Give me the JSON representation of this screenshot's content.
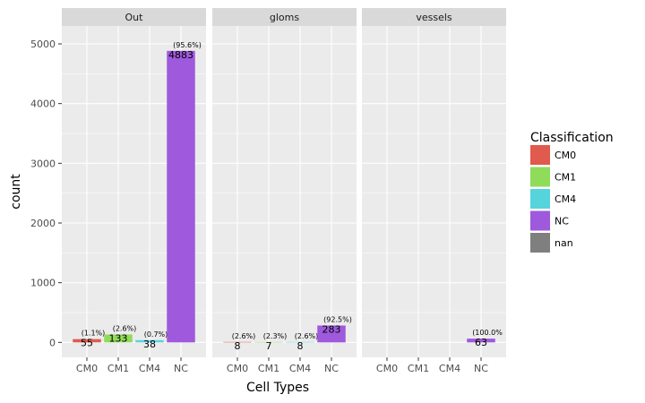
{
  "chart_data": {
    "type": "bar",
    "facet_by": "region",
    "facets": [
      {
        "label": "Out",
        "categories": [
          "CM0",
          "CM1",
          "CM4",
          "NC"
        ],
        "values": [
          55,
          133,
          38,
          4883
        ],
        "percent_labels": [
          "(1.1%)",
          "(2.6%)",
          "(0.7%)",
          "(95.6%)"
        ]
      },
      {
        "label": "gloms",
        "categories": [
          "CM0",
          "CM1",
          "CM4",
          "NC"
        ],
        "values": [
          8,
          7,
          8,
          283
        ],
        "percent_labels": [
          "(2.6%)",
          "(2.3%)",
          "(2.6%)",
          "(92.5%)"
        ]
      },
      {
        "label": "vessels",
        "categories": [
          "CM0",
          "CM1",
          "CM4",
          "NC"
        ],
        "values": [
          null,
          null,
          null,
          63
        ],
        "percent_labels": [
          "",
          "",
          "",
          "(100.0%"
        ]
      }
    ],
    "x_categories": [
      "CM0",
      "CM1",
      "CM4",
      "NC"
    ],
    "xlabel": "Cell Types",
    "ylabel": "count",
    "ylim": [
      -250,
      5300
    ],
    "y_ticks": [
      0,
      1000,
      2000,
      3000,
      4000,
      5000
    ],
    "grid": true,
    "legend": {
      "title": "Classification",
      "position": "right",
      "entries": [
        {
          "name": "CM0",
          "color": "#e05a4e"
        },
        {
          "name": "CM1",
          "color": "#8fdb5a"
        },
        {
          "name": "CM4",
          "color": "#56d4dc"
        },
        {
          "name": "NC",
          "color": "#9f59dc"
        },
        {
          "name": "nan",
          "color": "#7f7f7f"
        }
      ]
    },
    "colors": {
      "CM0": "#e05a4e",
      "CM1": "#8fdb5a",
      "CM4": "#56d4dc",
      "NC": "#9f59dc"
    },
    "panel_background": "#ebebeb",
    "strip_background": "#d9d9d9",
    "grid_color": "#ffffff"
  }
}
